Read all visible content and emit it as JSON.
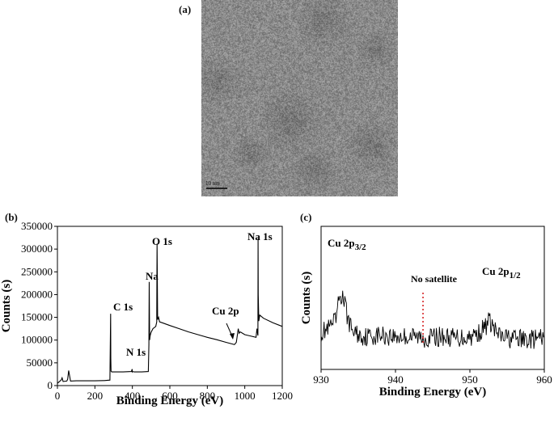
{
  "panel_labels": {
    "a": "(a)",
    "b": "(b)",
    "c": "(c)"
  },
  "tem_image": {
    "scale_bar_label": "10 nm"
  },
  "colors": {
    "axis": "#000000",
    "line": "#000000",
    "marker": "#d62728",
    "tem_base": "#8a8a8a"
  },
  "chart_data": [
    {
      "type": "line",
      "panel": "b",
      "title": "",
      "xlabel": "Binding Energy (eV)",
      "ylabel": "Counts (s)",
      "xlim": [
        0,
        1200
      ],
      "ylim": [
        0,
        350000
      ],
      "xticks": [
        0,
        200,
        400,
        600,
        800,
        1000,
        1200
      ],
      "yticks": [
        0,
        50000,
        100000,
        150000,
        200000,
        250000,
        300000,
        350000
      ],
      "ytick_labels": [
        "0",
        "50000",
        "100000",
        "150000",
        "200000",
        "250000",
        "300000",
        "350000"
      ],
      "series": [
        {
          "x": [
            0,
            20,
            25,
            30,
            50,
            55,
            60,
            70,
            100,
            150,
            200,
            250,
            280,
            284,
            285,
            286,
            290,
            300,
            350,
            395,
            399,
            400,
            402,
            410,
            450,
            485,
            488,
            490,
            492,
            495,
            500,
            510,
            525,
            530,
            532,
            535,
            540,
            545,
            560,
            600,
            650,
            700,
            750,
            800,
            850,
            900,
            945,
            955,
            960,
            965,
            970,
            975,
            980,
            1000,
            1030,
            1060,
            1065,
            1070,
            1071,
            1072,
            1075,
            1080,
            1100,
            1150,
            1200
          ],
          "y": [
            5000,
            12000,
            17000,
            9000,
            10000,
            14000,
            33000,
            10000,
            10500,
            10500,
            10500,
            11000,
            12000,
            158000,
            60000,
            32000,
            30000,
            30000,
            30000,
            31000,
            36000,
            30000,
            31000,
            30000,
            30000,
            31000,
            90000,
            228000,
            100000,
            110000,
            117000,
            125000,
            130000,
            140000,
            312000,
            145000,
            150000,
            140000,
            138000,
            132000,
            125000,
            118000,
            112000,
            106000,
            101000,
            95000,
            90000,
            95000,
            110000,
            125000,
            115000,
            118000,
            117000,
            112000,
            109000,
            106000,
            125000,
            110000,
            323000,
            200000,
            142000,
            155000,
            148000,
            138000,
            130000
          ]
        }
      ],
      "annotations": [
        {
          "text": "C 1s",
          "x": 285,
          "y": 158000
        },
        {
          "text": "N 1s",
          "x": 399,
          "y": 36000
        },
        {
          "text": "Na",
          "x": 490,
          "y": 228000
        },
        {
          "text": "O 1s",
          "x": 532,
          "y": 312000
        },
        {
          "text": "Cu 2p",
          "x": 950,
          "y": 93000
        },
        {
          "text": "Na 1s",
          "x": 1071,
          "y": 323000
        }
      ]
    },
    {
      "type": "line",
      "panel": "c",
      "title": "",
      "xlabel": "Binding Energy (eV)",
      "ylabel": "Counts (s)",
      "xlim": [
        930,
        960
      ],
      "xticks": [
        930,
        940,
        950,
        960
      ],
      "ylim": [
        0,
        100
      ],
      "series": [
        {
          "x": [
            930,
            931,
            932,
            932.5,
            933,
            933.5,
            934,
            935,
            936,
            938,
            940,
            942,
            944,
            946,
            948,
            950,
            951,
            952,
            952.5,
            953,
            953.5,
            954,
            955,
            957,
            959,
            960
          ],
          "y": [
            26,
            28,
            34,
            52,
            50,
            38,
            29,
            24,
            23,
            24,
            23,
            23,
            22,
            23,
            22,
            23,
            25,
            29,
            34,
            31,
            26,
            23,
            22,
            21,
            21,
            22
          ]
        }
      ],
      "annotations": [
        {
          "text": "Cu 2p3/2",
          "x": 932.5
        },
        {
          "text": "No satellite",
          "x": 943.5
        },
        {
          "text": "Cu 2p1/2",
          "x": 952.5
        }
      ]
    }
  ]
}
